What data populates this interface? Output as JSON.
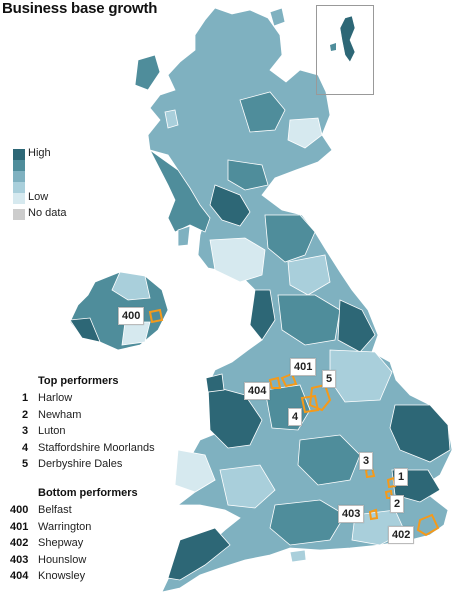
{
  "title": "Business base growth",
  "legend": {
    "high_label": "High",
    "low_label": "Low",
    "nodata_label": "No data",
    "colors": [
      "#2d6776",
      "#4f8d9b",
      "#7fb1c0",
      "#a9cfdb",
      "#d6e9ef"
    ],
    "nodata_color": "#cccccc",
    "highlight_color": "#f59a1a"
  },
  "top_performers": {
    "heading": "Top performers",
    "items": [
      {
        "rank": "1",
        "name": "Harlow"
      },
      {
        "rank": "2",
        "name": "Newham"
      },
      {
        "rank": "3",
        "name": "Luton"
      },
      {
        "rank": "4",
        "name": "Staffordshire Moorlands"
      },
      {
        "rank": "5",
        "name": "Derbyshire Dales"
      }
    ]
  },
  "bottom_performers": {
    "heading": "Bottom performers",
    "items": [
      {
        "rank": "400",
        "name": "Belfast"
      },
      {
        "rank": "401",
        "name": "Warrington"
      },
      {
        "rank": "402",
        "name": "Shepway"
      },
      {
        "rank": "403",
        "name": "Hounslow"
      },
      {
        "rank": "404",
        "name": "Knowsley"
      }
    ]
  },
  "map_badges": {
    "b400": "400",
    "b401": "401",
    "b404": "404",
    "b5": "5",
    "b4": "4",
    "b3": "3",
    "b1": "1",
    "b2": "2",
    "b403": "403",
    "b402": "402"
  }
}
